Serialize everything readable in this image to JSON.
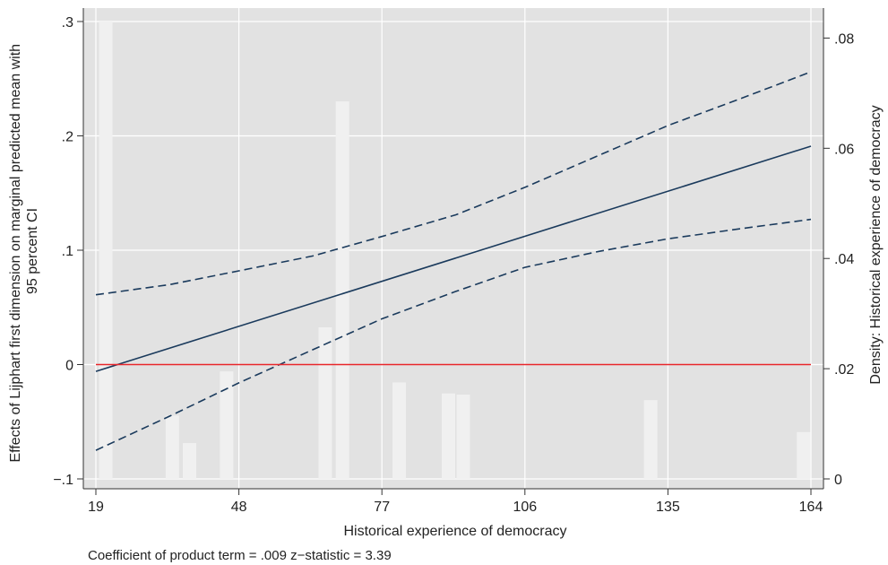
{
  "chart_data": {
    "type": "line",
    "xlabel": "Historical experience of democracy",
    "ylabel_lines": [
      "Effects of Lijphart first dimension on marginal predicted mean with",
      "95 percent CI"
    ],
    "y2label": "Density: Historical experience of democracy",
    "note": "Coefficient of product term = .009 z−statistic = 3.39",
    "xlim": [
      19,
      164
    ],
    "ylim": [
      -0.1,
      0.3
    ],
    "y2lim": [
      0,
      0.083
    ],
    "x_ticks": [
      "19",
      "48",
      "77",
      "106",
      "135",
      "164"
    ],
    "y_ticks": [
      {
        "value": -0.1,
        "label": "−.1"
      },
      {
        "value": 0,
        "label": "0"
      },
      {
        "value": 0.1,
        "label": ".1"
      },
      {
        "value": 0.2,
        "label": ".2"
      },
      {
        "value": 0.3,
        "label": ".3"
      }
    ],
    "y2_ticks": [
      {
        "value": 0,
        "label": "0"
      },
      {
        "value": 0.02,
        "label": ".02"
      },
      {
        "value": 0.04,
        "label": ".04"
      },
      {
        "value": 0.06,
        "label": ".06"
      },
      {
        "value": 0.08,
        "label": ".08"
      }
    ],
    "grid": true,
    "series": [
      {
        "role": "estimate",
        "style": "solid",
        "color": "#1a3a5c",
        "x": [
          19,
          164
        ],
        "y": [
          -0.006,
          0.191
        ]
      },
      {
        "role": "upper-ci",
        "style": "dashed",
        "color": "#1a3a5c",
        "x": [
          19,
          34,
          48,
          63,
          77,
          92,
          106,
          121,
          135,
          150,
          164
        ],
        "y": [
          0.061,
          0.07,
          0.082,
          0.095,
          0.112,
          0.131,
          0.155,
          0.183,
          0.209,
          0.233,
          0.256
        ]
      },
      {
        "role": "lower-ci",
        "style": "dashed",
        "color": "#1a3a5c",
        "x": [
          19,
          34,
          48,
          63,
          77,
          92,
          106,
          121,
          135,
          150,
          164
        ],
        "y": [
          -0.075,
          -0.045,
          -0.016,
          0.013,
          0.04,
          0.064,
          0.085,
          0.099,
          0.11,
          0.119,
          0.127
        ]
      },
      {
        "role": "zero-line",
        "style": "solid",
        "color": "#e8262b",
        "x": [
          19,
          164
        ],
        "y": [
          0,
          0
        ]
      }
    ],
    "density_bars": [
      {
        "x": 21,
        "density": 0.083
      },
      {
        "x": 34.5,
        "density": 0.0115
      },
      {
        "x": 38,
        "density": 0.0065
      },
      {
        "x": 45.5,
        "density": 0.0195
      },
      {
        "x": 65.5,
        "density": 0.0275
      },
      {
        "x": 69,
        "density": 0.0685
      },
      {
        "x": 80.5,
        "density": 0.0175
      },
      {
        "x": 90.5,
        "density": 0.0155
      },
      {
        "x": 93.5,
        "density": 0.0153
      },
      {
        "x": 131.5,
        "density": 0.0143
      },
      {
        "x": 162.5,
        "density": 0.0085
      }
    ],
    "colors": {
      "plot_background": "#e2e2e2",
      "grid": "#ffffff",
      "density_bar": "#f0f0f0",
      "ci_line": "#1a3a5c",
      "estimate_line": "#1a3a5c",
      "zero_line": "#e8262b",
      "axis": "#333333"
    }
  }
}
